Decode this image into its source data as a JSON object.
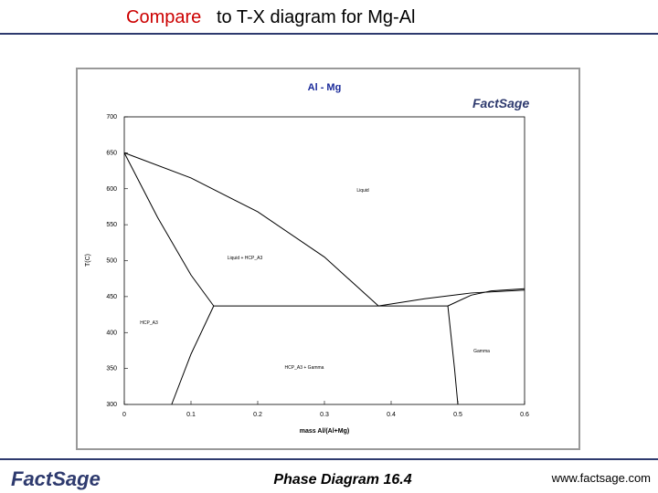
{
  "header": {
    "title_emphasis": "Compare",
    "title_rest": "to T-X diagram for Mg-Al"
  },
  "logo": "FactSage",
  "footer": {
    "center": "Phase Diagram 16.4",
    "right": "www.factsage.com"
  },
  "chart_data": {
    "type": "line",
    "title": "Al - Mg",
    "xlabel": "mass Al/(Al+Mg)",
    "ylabel": "T(C)",
    "xlim": [
      0,
      0.6
    ],
    "ylim": [
      300,
      700
    ],
    "xticks": [
      0,
      0.1,
      0.2,
      0.3,
      0.4,
      0.5,
      0.6
    ],
    "yticks": [
      300,
      350,
      400,
      450,
      500,
      550,
      600,
      650,
      700
    ],
    "annotations": [
      "Liquid",
      "Liquid + HCP_A3",
      "HCP_A3",
      "HCP_A3 + Gamma",
      "Gamma"
    ],
    "series": [
      {
        "color": "#000000",
        "x": [
          0,
          0.1,
          0.2,
          0.3,
          0.381
        ],
        "values": [
          650,
          615,
          568,
          505,
          437
        ]
      },
      {
        "color": "#000000",
        "x": [
          0.381,
          0.45,
          0.52,
          0.6
        ],
        "values": [
          437,
          447,
          455,
          459
        ]
      },
      {
        "color": "#000000",
        "x": [
          0,
          0.05,
          0.1,
          0.134
        ],
        "values": [
          650,
          560,
          480,
          437
        ]
      },
      {
        "color": "#000000",
        "x": [
          0.134,
          0.485
        ],
        "values": [
          437,
          437
        ]
      },
      {
        "color": "#000000",
        "x": [
          0.485,
          0.52,
          0.55,
          0.6
        ],
        "values": [
          437,
          452,
          458,
          461
        ]
      },
      {
        "color": "#000000",
        "x": [
          0.134,
          0.1,
          0.071
        ],
        "values": [
          437,
          370,
          300
        ]
      },
      {
        "color": "#000000",
        "x": [
          0.485,
          0.495,
          0.5
        ],
        "values": [
          437,
          350,
          300
        ]
      }
    ]
  }
}
